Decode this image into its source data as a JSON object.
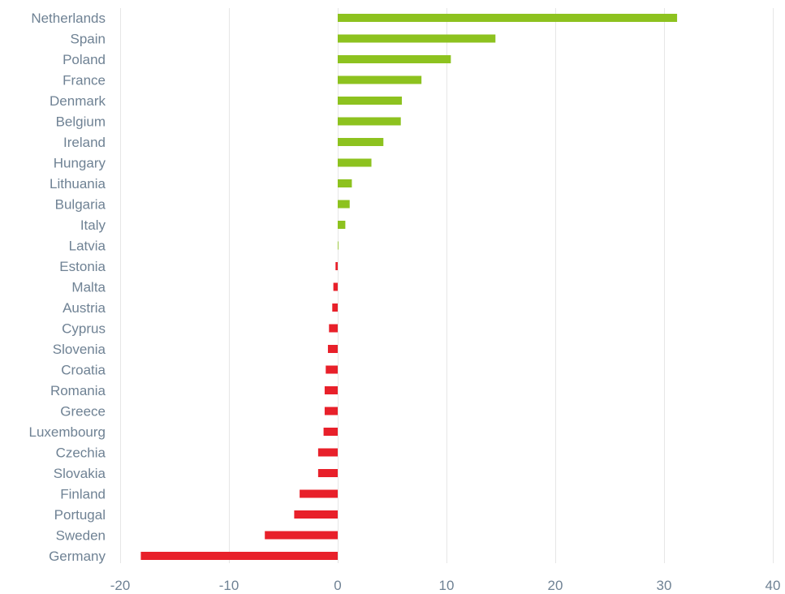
{
  "chart_data": {
    "type": "bar",
    "orientation": "horizontal",
    "categories": [
      "Netherlands",
      "Spain",
      "Poland",
      "France",
      "Denmark",
      "Belgium",
      "Ireland",
      "Hungary",
      "Lithuania",
      "Bulgaria",
      "Italy",
      "Latvia",
      "Estonia",
      "Malta",
      "Austria",
      "Cyprus",
      "Slovenia",
      "Croatia",
      "Romania",
      "Greece",
      "Luxembourg",
      "Czechia",
      "Slovakia",
      "Finland",
      "Portugal",
      "Sweden",
      "Germany"
    ],
    "values": [
      31.2,
      14.5,
      10.4,
      7.7,
      5.9,
      5.8,
      4.2,
      3.1,
      1.3,
      1.1,
      0.7,
      0.05,
      -0.2,
      -0.4,
      -0.5,
      -0.8,
      -0.9,
      -1.1,
      -1.2,
      -1.2,
      -1.3,
      -1.8,
      -1.8,
      -3.5,
      -4.0,
      -6.7,
      -18.1
    ],
    "xlim": [
      -20,
      40
    ],
    "xticks": [
      -20,
      -10,
      0,
      10,
      20,
      30,
      40
    ],
    "grid": "vertical",
    "legend": "none",
    "colors": {
      "positive": "#8dc21f",
      "negative": "#e8202a",
      "grid": "#e6e6e6",
      "label": "#6f8294"
    }
  }
}
